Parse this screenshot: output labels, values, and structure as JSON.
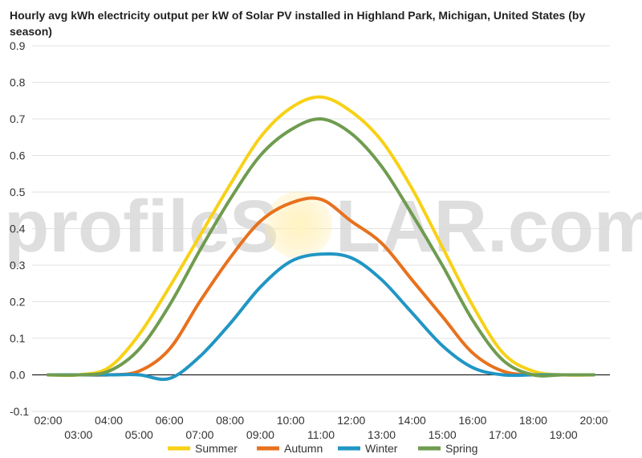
{
  "watermark": {
    "left_text": "profileS",
    "right_text": "LAR.com"
  },
  "chart_data": {
    "type": "line",
    "title": "Hourly avg kWh electricity output per kW of Solar PV installed in Highland Park, Michigan, United States (by season)",
    "xlabel": "",
    "ylabel": "",
    "x": [
      "02:00",
      "03:00",
      "04:00",
      "05:00",
      "06:00",
      "07:00",
      "08:00",
      "09:00",
      "10:00",
      "11:00",
      "12:00",
      "13:00",
      "14:00",
      "15:00",
      "16:00",
      "17:00",
      "18:00",
      "19:00",
      "20:00"
    ],
    "ylim": [
      -0.1,
      0.9
    ],
    "yticks": [
      "-0.1",
      "0.0",
      "0.1",
      "0.2",
      "0.3",
      "0.4",
      "0.5",
      "0.6",
      "0.7",
      "0.8",
      "0.9"
    ],
    "grid": true,
    "legend_position": "bottom",
    "series": [
      {
        "name": "Summer",
        "color": "#f7d117",
        "values": [
          0,
          0,
          0.02,
          0.11,
          0.24,
          0.38,
          0.52,
          0.65,
          0.73,
          0.76,
          0.72,
          0.64,
          0.51,
          0.35,
          0.19,
          0.06,
          0.01,
          0,
          0
        ]
      },
      {
        "name": "Autumn",
        "color": "#e8711e",
        "values": [
          0,
          0,
          0,
          0.01,
          0.07,
          0.2,
          0.32,
          0.42,
          0.47,
          0.48,
          0.42,
          0.36,
          0.26,
          0.16,
          0.06,
          0.01,
          0,
          0,
          0
        ]
      },
      {
        "name": "Winter",
        "color": "#2196c4",
        "values": [
          0,
          0,
          0,
          0,
          -0.01,
          0.05,
          0.14,
          0.24,
          0.31,
          0.33,
          0.32,
          0.26,
          0.17,
          0.08,
          0.02,
          0,
          0,
          0,
          0
        ]
      },
      {
        "name": "Spring",
        "color": "#6f9c4f",
        "values": [
          0,
          0,
          0.01,
          0.07,
          0.19,
          0.34,
          0.48,
          0.6,
          0.67,
          0.7,
          0.66,
          0.57,
          0.44,
          0.3,
          0.15,
          0.04,
          0,
          0,
          0
        ]
      }
    ]
  }
}
